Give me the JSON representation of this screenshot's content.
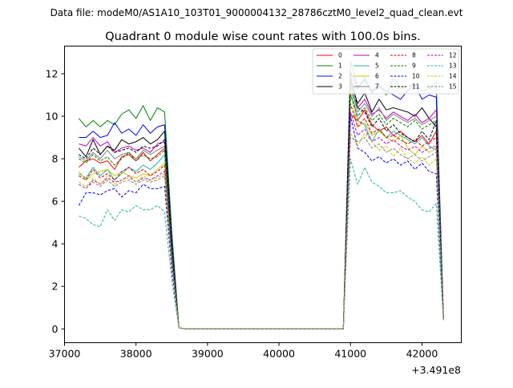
{
  "suptitle": "Data file: modeM0/AS1A10_103T01_9000004132_28786cztM0_level2_quad_clean.evt",
  "chart_data": {
    "type": "line",
    "title": "Quadrant 0 module wise count rates with 100.0s bins.",
    "xlabel": "",
    "ylabel": "",
    "x_offset_label": "+3.491e8",
    "xlim": [
      37000,
      42550
    ],
    "ylim": [
      -0.65,
      13.3
    ],
    "grid": false,
    "legend_position": "top-right",
    "x_ticks": [
      37000,
      38000,
      39000,
      40000,
      41000,
      42000
    ],
    "x_tick_labels": [
      "37000",
      "38000",
      "39000",
      "40000",
      "41000",
      "42000"
    ],
    "y_ticks": [
      0,
      2,
      4,
      6,
      8,
      10,
      12
    ],
    "y_tick_labels": [
      "0",
      "2",
      "4",
      "6",
      "8",
      "10",
      "12"
    ],
    "x": [
      37200,
      37300,
      37400,
      37500,
      37600,
      37700,
      37800,
      37900,
      38000,
      38100,
      38200,
      38300,
      38400,
      38500,
      38600,
      38700,
      38800,
      38900,
      39000,
      39100,
      39200,
      39300,
      39400,
      39500,
      39600,
      39700,
      39800,
      39900,
      40000,
      40100,
      40200,
      40300,
      40400,
      40500,
      40600,
      40700,
      40800,
      40900,
      41000,
      41100,
      41200,
      41300,
      41400,
      41500,
      41600,
      41700,
      41800,
      41900,
      42000,
      42100,
      42200,
      42300
    ],
    "series": [
      {
        "name": "0",
        "color": "#ff0000",
        "dash": "solid",
        "values": [
          7.6,
          7.9,
          8.0,
          7.8,
          7.9,
          7.5,
          8.1,
          8.2,
          7.9,
          8.3,
          7.9,
          8.2,
          8.5,
          3.5,
          0.05,
          0,
          0,
          0,
          0,
          0,
          0,
          0,
          0,
          0,
          0,
          0,
          0,
          0,
          0,
          0,
          0,
          0,
          0,
          0,
          0,
          0,
          0,
          0,
          10.1,
          9.8,
          10.3,
          9.6,
          9.3,
          9.5,
          9.1,
          9.3,
          9.0,
          8.8,
          9.1,
          8.7,
          9.3,
          0.5
        ]
      },
      {
        "name": "1",
        "color": "#008000",
        "dash": "solid",
        "values": [
          9.9,
          9.5,
          9.8,
          9.5,
          9.8,
          9.6,
          10.1,
          10.3,
          9.9,
          10.5,
          9.8,
          10.4,
          10.2,
          4.6,
          0.05,
          0,
          0,
          0,
          0,
          0,
          0,
          0,
          0,
          0,
          0,
          0,
          0,
          0,
          0,
          0,
          0,
          0,
          0,
          0,
          0,
          0,
          0,
          0,
          12.6,
          11.4,
          11.7,
          11.2,
          11.5,
          11.0,
          11.8,
          11.3,
          11.4,
          11.5,
          11.2,
          11.3,
          11.6,
          0.6
        ]
      },
      {
        "name": "2",
        "color": "#0000ff",
        "dash": "solid",
        "values": [
          9.0,
          9.0,
          9.3,
          9.0,
          9.1,
          9.7,
          9.2,
          9.4,
          9.1,
          9.6,
          9.2,
          9.5,
          9.6,
          4.2,
          0.05,
          0,
          0,
          0,
          0,
          0,
          0,
          0,
          0,
          0,
          0,
          0,
          0,
          0,
          0,
          0,
          0,
          0,
          0,
          0,
          0,
          0,
          0,
          0,
          12.1,
          11.3,
          11.8,
          11.1,
          11.4,
          11.2,
          11.0,
          10.8,
          11.2,
          11.5,
          10.8,
          11.0,
          10.9,
          0.5
        ]
      },
      {
        "name": "3",
        "color": "#000000",
        "dash": "solid",
        "values": [
          8.5,
          8.1,
          8.9,
          8.2,
          8.6,
          8.4,
          8.9,
          8.7,
          8.8,
          9.0,
          8.7,
          8.9,
          9.3,
          4.0,
          0.05,
          0,
          0,
          0,
          0,
          0,
          0,
          0,
          0,
          0,
          0,
          0,
          0,
          0,
          0,
          0,
          0,
          0,
          0,
          0,
          0,
          0,
          0,
          0,
          11.7,
          10.6,
          11.1,
          10.2,
          10.8,
          10.3,
          10.4,
          10.3,
          10.2,
          10.0,
          10.4,
          9.9,
          9.5,
          0.5
        ]
      },
      {
        "name": "4",
        "color": "#c000c0",
        "dash": "solid",
        "values": [
          8.7,
          8.6,
          9.0,
          8.6,
          8.8,
          8.3,
          8.5,
          8.6,
          8.4,
          8.5,
          8.3,
          8.7,
          8.8,
          3.9,
          0.05,
          0,
          0,
          0,
          0,
          0,
          0,
          0,
          0,
          0,
          0,
          0,
          0,
          0,
          0,
          0,
          0,
          0,
          0,
          0,
          0,
          0,
          0,
          0,
          11.4,
          10.4,
          10.8,
          10.1,
          10.3,
          9.9,
          10.2,
          10.0,
          9.8,
          10.1,
          9.7,
          9.9,
          10.3,
          0.5
        ]
      },
      {
        "name": "5",
        "color": "#20b2aa",
        "dash": "solid",
        "values": [
          7.3,
          7.1,
          7.6,
          7.2,
          7.5,
          7.0,
          7.3,
          7.6,
          7.4,
          7.7,
          7.5,
          7.8,
          8.2,
          3.4,
          0.05,
          0,
          0,
          0,
          0,
          0,
          0,
          0,
          0,
          0,
          0,
          0,
          0,
          0,
          0,
          0,
          0,
          0,
          0,
          0,
          0,
          0,
          0,
          0,
          11.5,
          9.8,
          9.6,
          8.8,
          9.4,
          9.0,
          9.3,
          9.1,
          8.9,
          8.7,
          9.0,
          8.6,
          8.4,
          0.5
        ]
      },
      {
        "name": "6",
        "color": "#c8c800",
        "dash": "solid",
        "values": [
          7.4,
          7.0,
          7.3,
          7.4,
          7.5,
          7.2,
          7.4,
          7.2,
          7.1,
          7.3,
          7.2,
          7.5,
          7.8,
          3.3,
          0.05,
          0,
          0,
          0,
          0,
          0,
          0,
          0,
          0,
          0,
          0,
          0,
          0,
          0,
          0,
          0,
          0,
          0,
          0,
          0,
          0,
          0,
          0,
          0,
          11.2,
          9.5,
          9.7,
          9.1,
          9.3,
          9.0,
          8.8,
          9.1,
          8.5,
          8.2,
          8.6,
          8.3,
          8.5,
          0.5
        ]
      },
      {
        "name": "7",
        "color": "#808080",
        "dash": "solid",
        "values": [
          8.1,
          7.9,
          8.3,
          8.0,
          8.4,
          8.0,
          8.2,
          8.3,
          8.0,
          8.4,
          8.2,
          8.4,
          8.6,
          3.7,
          0.05,
          0,
          0,
          0,
          0,
          0,
          0,
          0,
          0,
          0,
          0,
          0,
          0,
          0,
          0,
          0,
          0,
          0,
          0,
          0,
          0,
          0,
          0,
          0,
          11.6,
          10.2,
          10.6,
          10.0,
          10.4,
          9.8,
          10.1,
          9.9,
          9.7,
          9.9,
          9.6,
          9.8,
          10.0,
          0.5
        ]
      },
      {
        "name": "8",
        "color": "#cc0000",
        "dash": "dashed",
        "values": [
          7.2,
          7.0,
          7.5,
          7.1,
          7.3,
          7.0,
          7.4,
          7.6,
          7.3,
          7.5,
          7.2,
          7.4,
          7.7,
          3.3,
          0.05,
          0,
          0,
          0,
          0,
          0,
          0,
          0,
          0,
          0,
          0,
          0,
          0,
          0,
          0,
          0,
          0,
          0,
          0,
          0,
          0,
          0,
          0,
          0,
          10.6,
          9.5,
          9.9,
          9.2,
          9.4,
          9.0,
          9.1,
          8.9,
          8.7,
          8.9,
          8.6,
          8.8,
          9.0,
          0.5
        ]
      },
      {
        "name": "9",
        "color": "#008000",
        "dash": "dashed",
        "values": [
          8.0,
          7.8,
          8.2,
          7.9,
          8.1,
          7.7,
          8.0,
          8.3,
          7.9,
          8.2,
          8.0,
          8.1,
          8.4,
          3.6,
          0.05,
          0,
          0,
          0,
          0,
          0,
          0,
          0,
          0,
          0,
          0,
          0,
          0,
          0,
          0,
          0,
          0,
          0,
          0,
          0,
          0,
          0,
          0,
          0,
          11.0,
          10.0,
          10.4,
          9.8,
          10.1,
          9.6,
          9.9,
          9.7,
          9.5,
          9.8,
          9.4,
          9.6,
          9.8,
          0.5
        ]
      },
      {
        "name": "10",
        "color": "#0000ff",
        "dash": "dashed",
        "values": [
          5.8,
          6.4,
          6.4,
          6.3,
          6.5,
          6.6,
          6.2,
          6.5,
          6.4,
          6.8,
          6.6,
          6.6,
          6.7,
          2.8,
          0.05,
          0,
          0,
          0,
          0,
          0,
          0,
          0,
          0,
          0,
          0,
          0,
          0,
          0,
          0,
          0,
          0,
          0,
          0,
          0,
          0,
          0,
          0,
          0,
          10.0,
          8.5,
          8.3,
          7.9,
          8.1,
          7.8,
          8.0,
          7.7,
          7.9,
          7.5,
          7.8,
          7.4,
          7.3,
          0.4
        ]
      },
      {
        "name": "11",
        "color": "#000000",
        "dash": "dashed",
        "values": [
          8.2,
          8.0,
          8.5,
          8.2,
          8.6,
          8.3,
          8.4,
          8.5,
          8.3,
          8.6,
          8.5,
          8.6,
          8.9,
          3.8,
          0.05,
          0,
          0,
          0,
          0,
          0,
          0,
          0,
          0,
          0,
          0,
          0,
          0,
          0,
          0,
          0,
          0,
          0,
          0,
          0,
          0,
          0,
          0,
          0,
          12.0,
          10.4,
          10.2,
          9.5,
          9.9,
          9.3,
          9.6,
          9.2,
          9.0,
          8.8,
          9.3,
          8.9,
          9.8,
          0.5
        ]
      },
      {
        "name": "12",
        "color": "#c000c0",
        "dash": "dashed",
        "values": [
          6.8,
          6.6,
          7.0,
          6.8,
          7.1,
          6.9,
          7.0,
          7.2,
          6.9,
          7.1,
          7.0,
          7.2,
          7.4,
          3.2,
          0.05,
          0,
          0,
          0,
          0,
          0,
          0,
          0,
          0,
          0,
          0,
          0,
          0,
          0,
          0,
          0,
          0,
          0,
          0,
          0,
          0,
          0,
          0,
          0,
          10.2,
          9.1,
          9.4,
          8.8,
          9.0,
          8.7,
          8.9,
          8.6,
          8.4,
          8.6,
          8.3,
          8.5,
          8.6,
          0.4
        ]
      },
      {
        "name": "13",
        "color": "#20b2aa",
        "dash": "dashed",
        "values": [
          5.3,
          5.2,
          4.9,
          4.8,
          5.6,
          5.1,
          5.6,
          5.5,
          5.8,
          5.6,
          5.6,
          5.8,
          5.5,
          2.3,
          0.05,
          0,
          0,
          0,
          0,
          0,
          0,
          0,
          0,
          0,
          0,
          0,
          0,
          0,
          0,
          0,
          0,
          0,
          0,
          0,
          0,
          0,
          0,
          0,
          8.0,
          6.8,
          7.6,
          6.9,
          6.7,
          6.4,
          6.4,
          6.5,
          6.2,
          6.0,
          5.6,
          5.5,
          5.9,
          0.4
        ]
      },
      {
        "name": "14",
        "color": "#c8c800",
        "dash": "dashed",
        "values": [
          6.9,
          6.7,
          7.1,
          6.8,
          7.2,
          6.8,
          7.0,
          7.1,
          6.9,
          7.2,
          7.0,
          7.1,
          7.3,
          3.1,
          0.05,
          0,
          0,
          0,
          0,
          0,
          0,
          0,
          0,
          0,
          0,
          0,
          0,
          0,
          0,
          0,
          0,
          0,
          0,
          0,
          0,
          0,
          0,
          0,
          9.2,
          8.6,
          9.2,
          8.8,
          8.4,
          8.6,
          8.1,
          8.5,
          8.0,
          7.8,
          8.1,
          7.7,
          8.0,
          0.4
        ]
      },
      {
        "name": "15",
        "color": "#808080",
        "dash": "dashed",
        "values": [
          6.8,
          6.6,
          6.9,
          6.7,
          7.0,
          6.7,
          6.9,
          7.0,
          6.8,
          7.0,
          6.9,
          7.0,
          7.2,
          3.1,
          0.05,
          0,
          0,
          0,
          0,
          0,
          0,
          0,
          0,
          0,
          0,
          0,
          0,
          0,
          0,
          0,
          0,
          0,
          0,
          0,
          0,
          0,
          0,
          0,
          9.0,
          8.8,
          9.0,
          8.5,
          8.7,
          8.3,
          8.5,
          8.2,
          8.0,
          8.2,
          7.9,
          8.1,
          8.3,
          0.4
        ]
      }
    ]
  }
}
